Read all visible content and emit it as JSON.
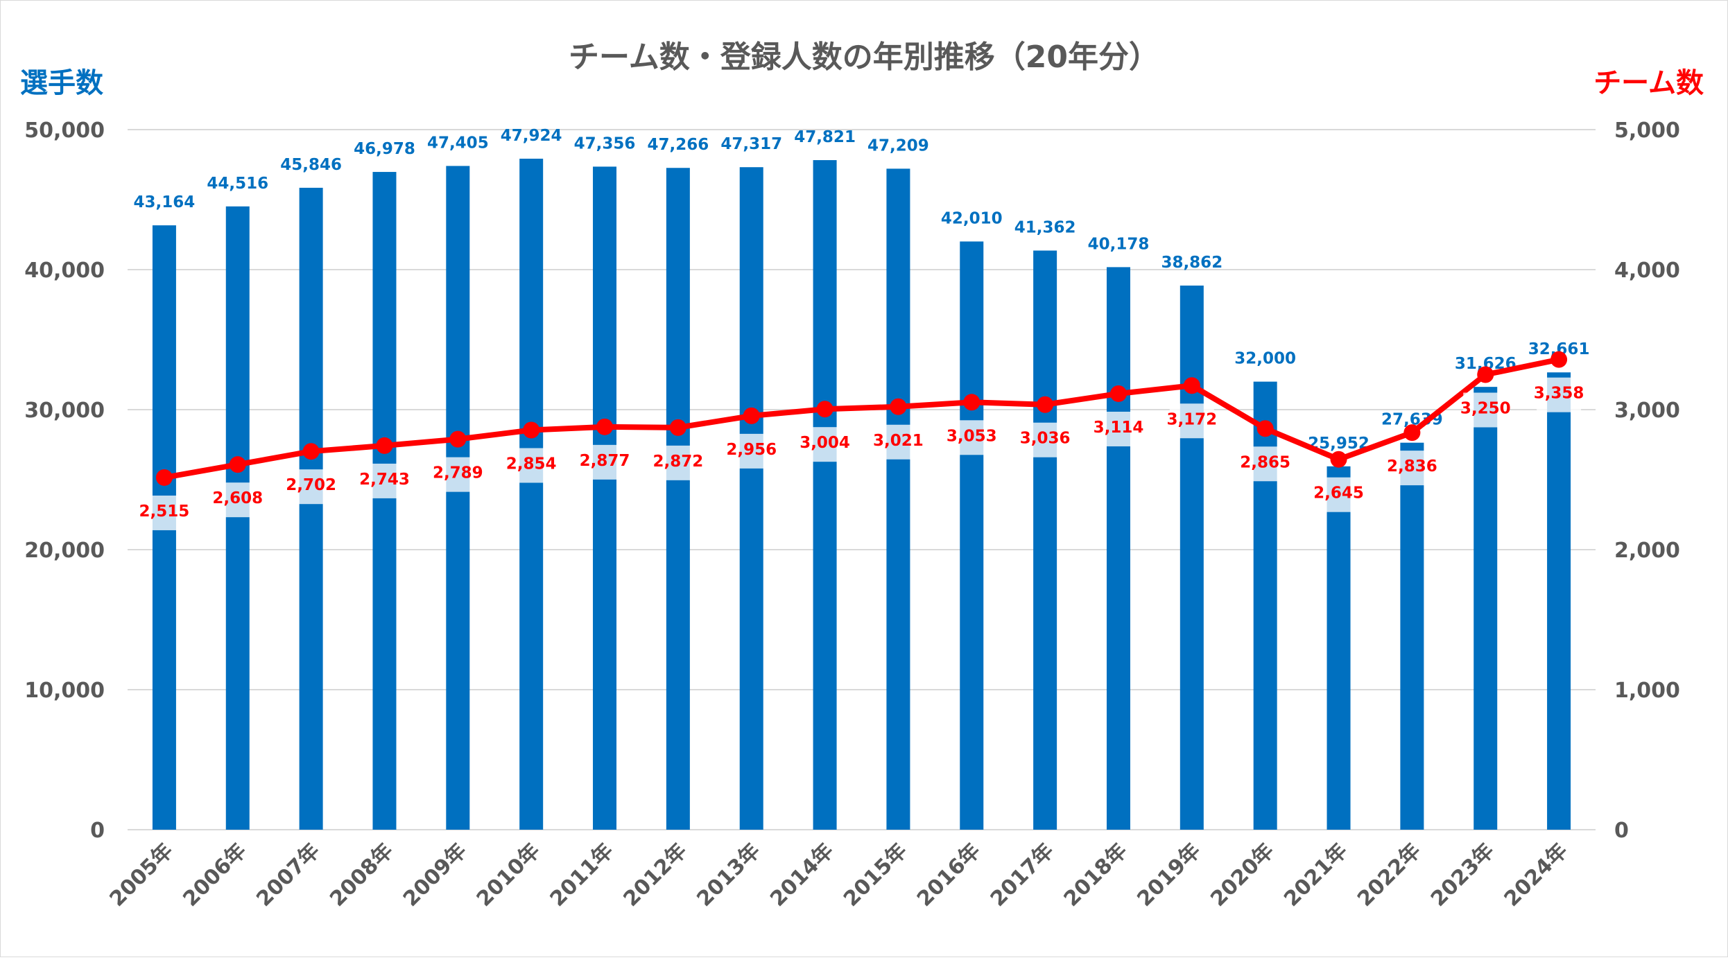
{
  "chart_data": {
    "type": "bar+line",
    "title": "チーム数・登録人数の年別推移（20年分）",
    "categories": [
      "2005年",
      "2006年",
      "2007年",
      "2008年",
      "2009年",
      "2010年",
      "2011年",
      "2012年",
      "2013年",
      "2014年",
      "2015年",
      "2016年",
      "2017年",
      "2018年",
      "2019年",
      "2020年",
      "2021年",
      "2022年",
      "2023年",
      "2024年"
    ],
    "series": [
      {
        "name": "選手数",
        "type": "bar",
        "axis": "left",
        "color": "#0070c0",
        "values": [
          43164,
          44516,
          45846,
          46978,
          47405,
          47924,
          47356,
          47266,
          47317,
          47821,
          47209,
          42010,
          41362,
          40178,
          38862,
          32000,
          25952,
          27639,
          31626,
          32661
        ],
        "labels": [
          "43,164",
          "44,516",
          "45,846",
          "46,978",
          "47,405",
          "47,924",
          "47,356",
          "47,266",
          "47,317",
          "47,821",
          "47,209",
          "42,010",
          "41,362",
          "40,178",
          "38,862",
          "32,000",
          "25,952",
          "27,639",
          "31,626",
          "32,661"
        ]
      },
      {
        "name": "チーム数",
        "type": "line",
        "axis": "right",
        "color": "#ff0000",
        "values": [
          2515,
          2608,
          2702,
          2743,
          2789,
          2854,
          2877,
          2872,
          2956,
          3004,
          3021,
          3053,
          3036,
          3114,
          3172,
          2865,
          2645,
          2836,
          3250,
          3358
        ],
        "labels": [
          "2,515",
          "2,608",
          "2,702",
          "2,743",
          "2,789",
          "2,854",
          "2,877",
          "2,872",
          "2,956",
          "3,004",
          "3,021",
          "3,053",
          "3,036",
          "3,114",
          "3,172",
          "2,865",
          "2,645",
          "2,836",
          "3,250",
          "3,358"
        ]
      }
    ],
    "y_left": {
      "title": "選手数",
      "range": [
        0,
        50000
      ],
      "ticks": [
        0,
        10000,
        20000,
        30000,
        40000,
        50000
      ],
      "tick_labels": [
        "0",
        "10,000",
        "20,000",
        "30,000",
        "40,000",
        "50,000"
      ]
    },
    "y_right": {
      "title": "チーム数",
      "range": [
        0,
        5000
      ],
      "ticks": [
        0,
        1000,
        2000,
        3000,
        4000,
        5000
      ],
      "tick_labels": [
        "0",
        "1,000",
        "2,000",
        "3,000",
        "4,000",
        "5,000"
      ]
    },
    "grid": true,
    "legend": "none"
  }
}
